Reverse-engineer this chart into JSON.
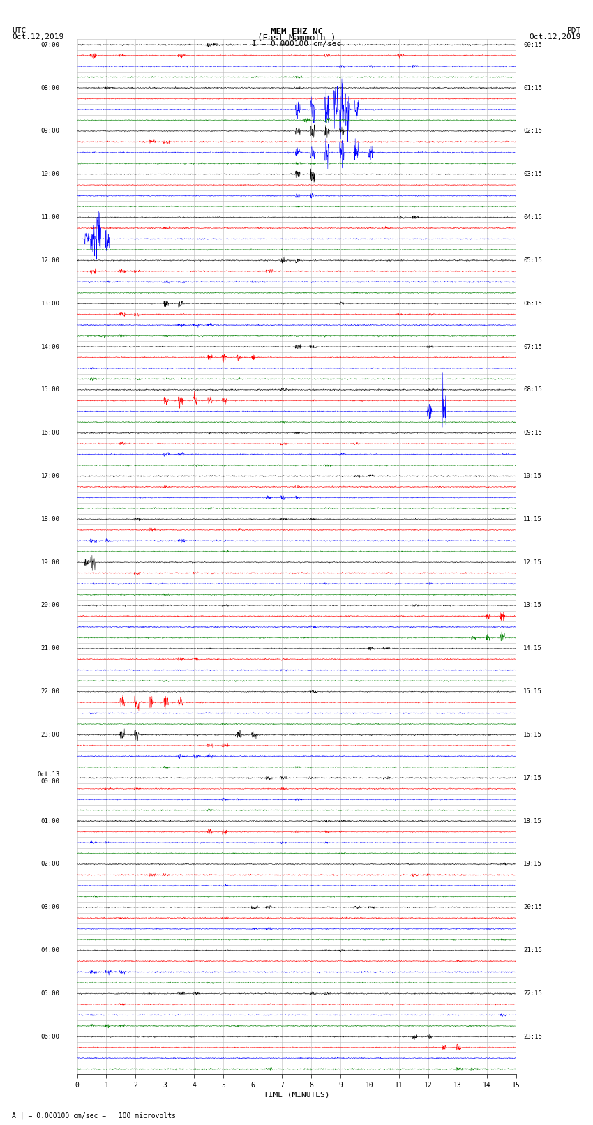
{
  "title_line1": "MEM EHZ NC",
  "title_line2": "(East Mammoth )",
  "scale_label": "I = 0.000100 cm/sec",
  "left_header_line1": "UTC",
  "left_header_line2": "Oct.12,2019",
  "right_header_line1": "PDT",
  "right_header_line2": "Oct.12,2019",
  "xlabel": "TIME (MINUTES)",
  "bottom_note": "A | = 0.000100 cm/sec =   100 microvolts",
  "utc_row_labels": [
    "07:00",
    "",
    "",
    "",
    "08:00",
    "",
    "",
    "",
    "09:00",
    "",
    "",
    "",
    "10:00",
    "",
    "",
    "",
    "11:00",
    "",
    "",
    "",
    "12:00",
    "",
    "",
    "",
    "13:00",
    "",
    "",
    "",
    "14:00",
    "",
    "",
    "",
    "15:00",
    "",
    "",
    "",
    "16:00",
    "",
    "",
    "",
    "17:00",
    "",
    "",
    "",
    "18:00",
    "",
    "",
    "",
    "19:00",
    "",
    "",
    "",
    "20:00",
    "",
    "",
    "",
    "21:00",
    "",
    "",
    "",
    "22:00",
    "",
    "",
    "",
    "23:00",
    "",
    "",
    "",
    "Oct.13\n00:00",
    "",
    "",
    "",
    "01:00",
    "",
    "",
    "",
    "02:00",
    "",
    "",
    "",
    "03:00",
    "",
    "",
    "",
    "04:00",
    "",
    "",
    "",
    "05:00",
    "",
    "",
    "",
    "06:00",
    "",
    "",
    ""
  ],
  "pdt_row_labels": [
    "00:15",
    "",
    "",
    "",
    "01:15",
    "",
    "",
    "",
    "02:15",
    "",
    "",
    "",
    "03:15",
    "",
    "",
    "",
    "04:15",
    "",
    "",
    "",
    "05:15",
    "",
    "",
    "",
    "06:15",
    "",
    "",
    "",
    "07:15",
    "",
    "",
    "",
    "08:15",
    "",
    "",
    "",
    "09:15",
    "",
    "",
    "",
    "10:15",
    "",
    "",
    "",
    "11:15",
    "",
    "",
    "",
    "12:15",
    "",
    "",
    "",
    "13:15",
    "",
    "",
    "",
    "14:15",
    "",
    "",
    "",
    "15:15",
    "",
    "",
    "",
    "16:15",
    "",
    "",
    "",
    "17:15",
    "",
    "",
    "",
    "18:15",
    "",
    "",
    "",
    "19:15",
    "",
    "",
    "",
    "20:15",
    "",
    "",
    "",
    "21:15",
    "",
    "",
    "",
    "22:15",
    "",
    "",
    "",
    "23:15",
    "",
    "",
    ""
  ],
  "xmin": 0,
  "xmax": 15,
  "background_color": "#ffffff",
  "grid_color": "#bbbbbb",
  "trace_colors": [
    "black",
    "red",
    "blue",
    "green"
  ],
  "seed": 12345
}
